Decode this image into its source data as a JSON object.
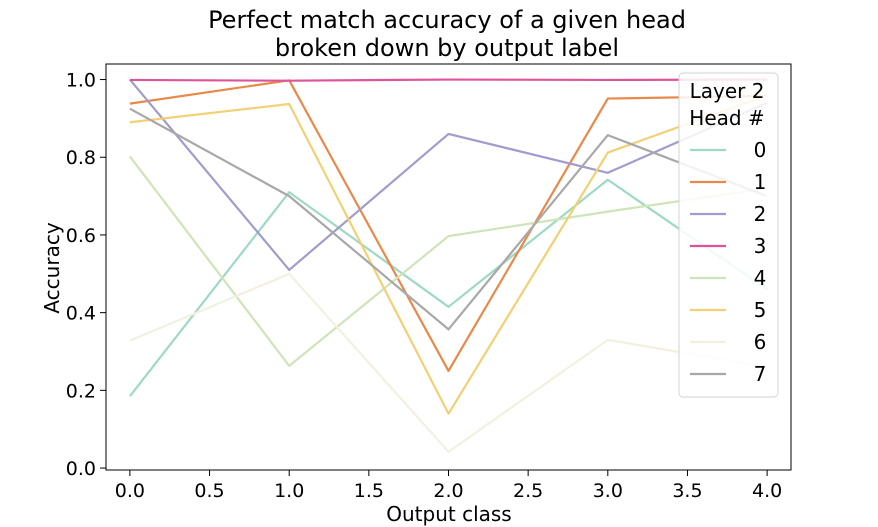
{
  "chart_data": {
    "type": "line",
    "title": [
      "Perfect match accuracy of a given head",
      "broken down by output label"
    ],
    "xlabel": "Output class",
    "ylabel": "Accuracy",
    "xlim": [
      -0.15,
      4.15
    ],
    "ylim": [
      -0.005,
      1.04
    ],
    "xticks": [
      0.0,
      0.5,
      1.0,
      1.5,
      2.0,
      2.5,
      3.0,
      3.5,
      4.0
    ],
    "xtick_labels": [
      "0.0",
      "0.5",
      "1.0",
      "1.5",
      "2.0",
      "2.5",
      "3.0",
      "3.5",
      "4.0"
    ],
    "yticks": [
      0.0,
      0.2,
      0.4,
      0.6,
      0.8,
      1.0
    ],
    "ytick_labels": [
      "0.0",
      "0.2",
      "0.4",
      "0.6",
      "0.8",
      "1.0"
    ],
    "grid": false,
    "legend": {
      "title": [
        "Layer 2",
        "Head #"
      ],
      "position": "top-right"
    },
    "x": [
      0,
      1,
      2,
      3,
      4
    ],
    "series": [
      {
        "name": "0",
        "color": "#9ed9c4",
        "values": [
          0.185,
          0.71,
          0.415,
          0.742,
          0.46
        ]
      },
      {
        "name": "1",
        "color": "#e8894a",
        "values": [
          0.938,
          0.998,
          0.25,
          0.951,
          0.958
        ]
      },
      {
        "name": "2",
        "color": "#a09ccb",
        "values": [
          1.0,
          0.51,
          0.86,
          0.76,
          0.94
        ]
      },
      {
        "name": "3",
        "color": "#e0529a",
        "values": [
          0.999,
          0.997,
          1.0,
          0.999,
          1.0
        ]
      },
      {
        "name": "4",
        "color": "#cfe4b8",
        "values": [
          0.802,
          0.263,
          0.597,
          0.66,
          0.72
        ]
      },
      {
        "name": "5",
        "color": "#f2d074",
        "values": [
          0.89,
          0.937,
          0.14,
          0.812,
          0.96
        ]
      },
      {
        "name": "6",
        "color": "#f3f0e1",
        "values": [
          0.328,
          0.5,
          0.042,
          0.33,
          0.26
        ]
      },
      {
        "name": "7",
        "color": "#a8a8a8",
        "values": [
          0.925,
          0.7,
          0.357,
          0.857,
          0.7
        ]
      }
    ]
  }
}
